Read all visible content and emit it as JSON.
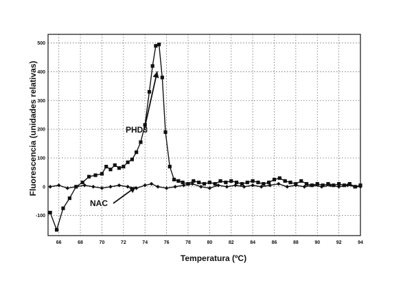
{
  "chart_data": {
    "type": "line",
    "title": "",
    "xlabel": "Temperatura (ºC)",
    "ylabel": "Fluorescencia (unidades relativas)",
    "xlim": [
      65,
      94
    ],
    "ylim": [
      -170,
      530
    ],
    "x_ticks": [
      66,
      68,
      70,
      72,
      74,
      76,
      78,
      80,
      82,
      84,
      86,
      88,
      90,
      92,
      94
    ],
    "y_ticks": [
      -100,
      0,
      100,
      200,
      300,
      400,
      500
    ],
    "grid": true,
    "legend": "none",
    "series": [
      {
        "name": "PHD3",
        "marker": "square",
        "x": [
          65.2,
          65.8,
          66.4,
          67.0,
          67.6,
          68.2,
          68.8,
          69.4,
          70.0,
          70.4,
          70.8,
          71.2,
          71.6,
          72.0,
          72.4,
          72.8,
          73.2,
          73.6,
          74.0,
          74.4,
          74.7,
          75.0,
          75.3,
          75.6,
          75.9,
          76.3,
          76.7,
          77.1,
          77.5,
          78.0,
          78.5,
          79.0,
          79.5,
          80.0,
          80.5,
          81.0,
          81.5,
          82.0,
          82.5,
          83.0,
          83.5,
          84.0,
          84.5,
          85.0,
          85.5,
          86.0,
          86.5,
          87.0,
          87.5,
          88.0,
          88.5,
          89.0,
          89.5,
          90.0,
          90.5,
          91.0,
          91.5,
          92.0,
          92.5,
          93.0,
          93.5,
          94.0
        ],
        "y": [
          -90,
          -150,
          -75,
          -40,
          0,
          15,
          35,
          40,
          45,
          70,
          60,
          75,
          65,
          70,
          85,
          95,
          120,
          155,
          215,
          330,
          420,
          490,
          495,
          380,
          190,
          70,
          25,
          20,
          15,
          10,
          20,
          15,
          10,
          15,
          10,
          20,
          15,
          20,
          15,
          10,
          15,
          20,
          15,
          10,
          15,
          25,
          30,
          20,
          15,
          10,
          20,
          10,
          5,
          10,
          5,
          10,
          5,
          10,
          5,
          10,
          0,
          5
        ]
      },
      {
        "name": "NAC",
        "marker": "diamond",
        "x": [
          65.2,
          66.0,
          66.8,
          67.6,
          68.4,
          69.2,
          70.0,
          70.8,
          71.6,
          72.4,
          73.2,
          74.0,
          74.6,
          75.2,
          76.0,
          76.8,
          77.6,
          78.4,
          79.2,
          80.0,
          80.8,
          81.6,
          82.4,
          83.2,
          84.0,
          84.8,
          85.6,
          86.4,
          87.2,
          88.0,
          88.8,
          89.6,
          90.4,
          91.2,
          92.0,
          92.8,
          93.6,
          94.0
        ],
        "y": [
          0,
          5,
          -5,
          0,
          5,
          0,
          -5,
          0,
          5,
          0,
          -5,
          5,
          10,
          0,
          -5,
          0,
          5,
          10,
          0,
          -5,
          5,
          0,
          5,
          0,
          5,
          0,
          5,
          10,
          0,
          5,
          0,
          5,
          0,
          5,
          0,
          5,
          0,
          0
        ]
      }
    ],
    "annotations": [
      {
        "text": "PHD3",
        "series": "PHD3"
      },
      {
        "text": "NAC",
        "series": "NAC"
      }
    ]
  }
}
